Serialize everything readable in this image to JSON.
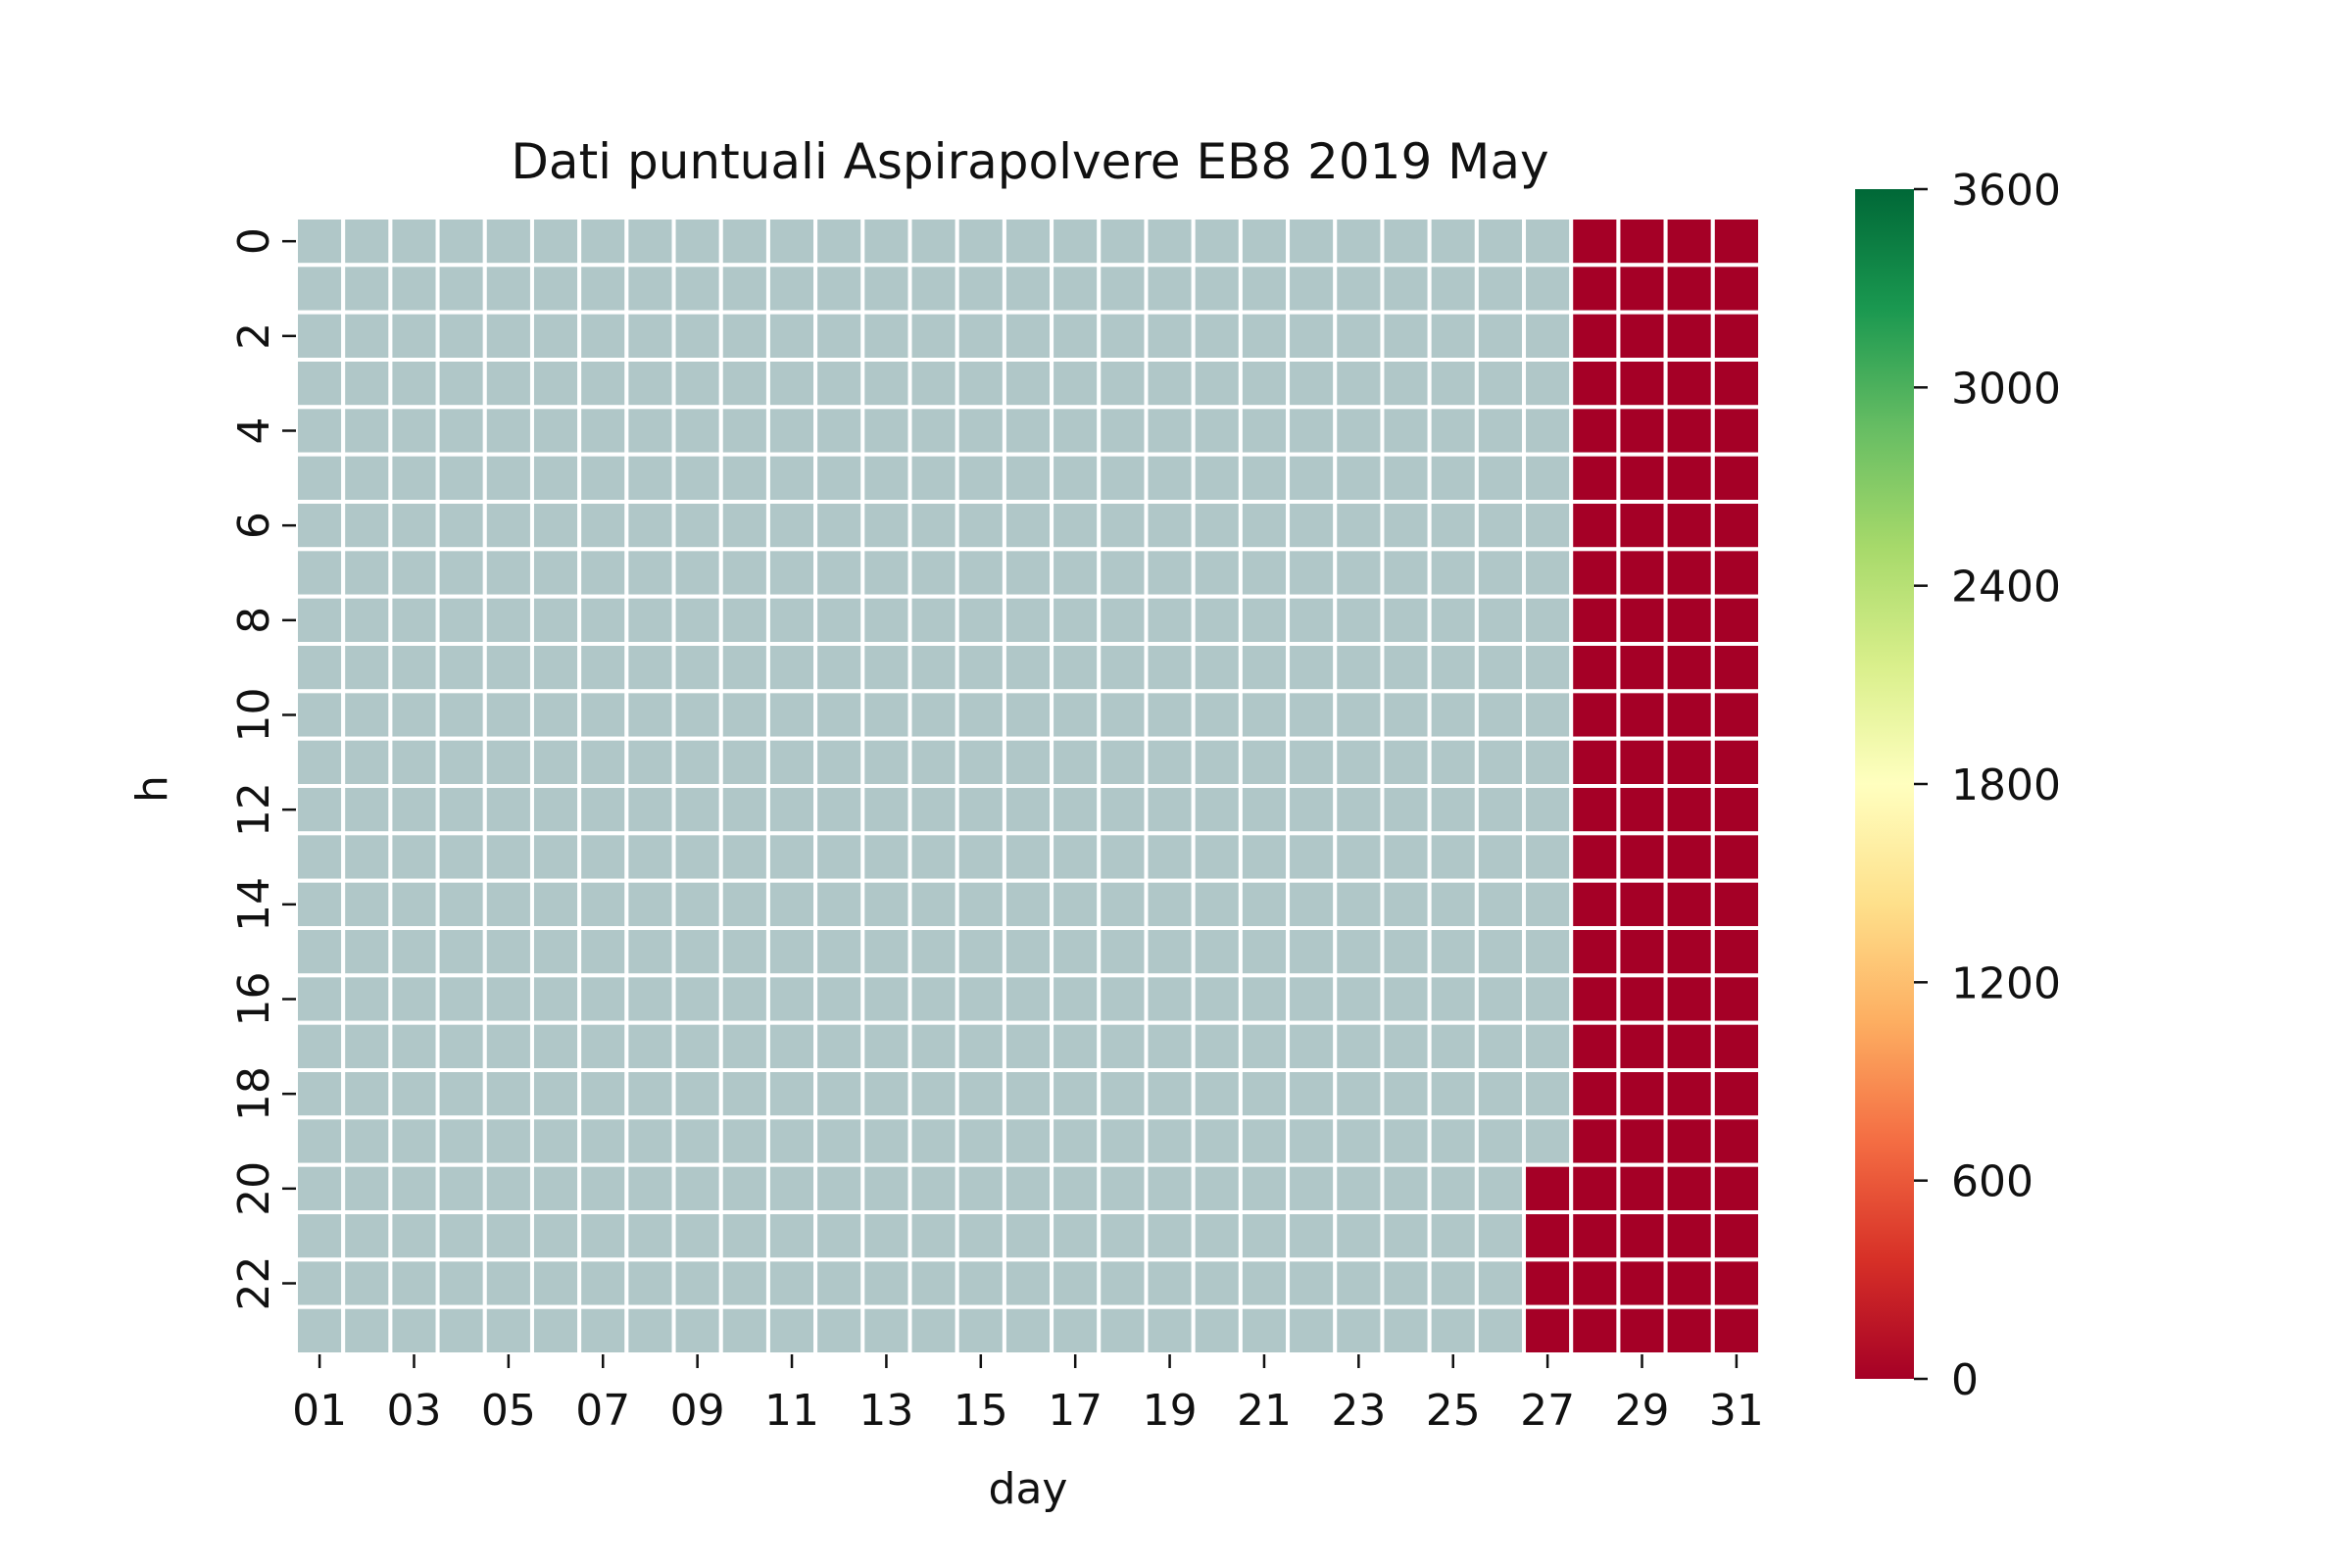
{
  "chart_data": {
    "type": "heatmap",
    "title": "Dati puntuali Aspirapolvere EB8 2019 May",
    "xlabel": "day",
    "ylabel": "h",
    "x_tick_labels": [
      "01",
      "03",
      "05",
      "07",
      "09",
      "11",
      "13",
      "15",
      "17",
      "19",
      "21",
      "23",
      "25",
      "27",
      "29",
      "31"
    ],
    "y_tick_labels": [
      "0",
      "2",
      "4",
      "6",
      "8",
      "10",
      "12",
      "14",
      "16",
      "18",
      "20",
      "22"
    ],
    "days": [
      "01",
      "02",
      "03",
      "04",
      "05",
      "06",
      "07",
      "08",
      "09",
      "10",
      "11",
      "12",
      "13",
      "14",
      "15",
      "16",
      "17",
      "18",
      "19",
      "20",
      "21",
      "22",
      "23",
      "24",
      "25",
      "26",
      "27",
      "28",
      "29",
      "30",
      "31"
    ],
    "hours": [
      0,
      1,
      2,
      3,
      4,
      5,
      6,
      7,
      8,
      9,
      10,
      11,
      12,
      13,
      14,
      15,
      16,
      17,
      18,
      19,
      20,
      21,
      22,
      23
    ],
    "colorbar": {
      "min": 0,
      "max": 3600,
      "ticks": [
        0,
        600,
        1200,
        1800,
        2400,
        3000,
        3600
      ],
      "colormap": "RdYlGn"
    },
    "missing_color": "#b0c7c8",
    "missing_value_meaning": "no data",
    "values_note": "",
    "data": {
      "zero_cells": [
        {
          "day_from": "28",
          "day_to": "31",
          "hour_from": 0,
          "hour_to": 23,
          "value": 0
        },
        {
          "day_from": "27",
          "day_to": "27",
          "hour_from": 20,
          "hour_to": 23,
          "value": 0
        }
      ],
      "other_cells": "missing"
    }
  }
}
